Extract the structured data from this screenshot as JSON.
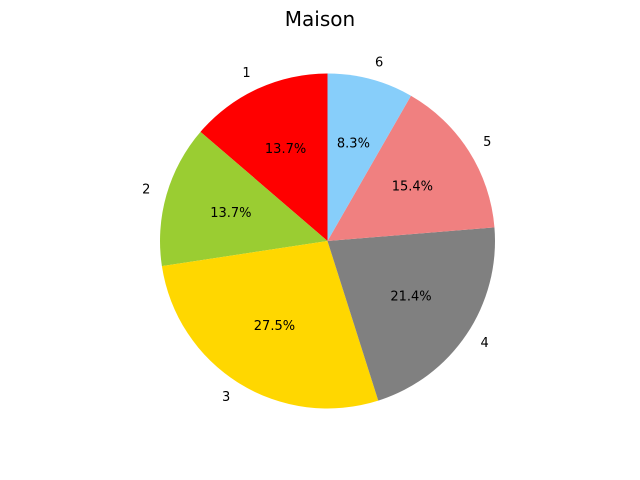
{
  "chart_data": {
    "type": "pie",
    "title": "Maison",
    "start_angle_deg": 90,
    "direction": "counterclockwise",
    "slices": [
      {
        "label": "1",
        "value": 13.7,
        "pct_label": "13.7%",
        "color": "#ff0000"
      },
      {
        "label": "2",
        "value": 13.7,
        "pct_label": "13.7%",
        "color": "#9acd32"
      },
      {
        "label": "3",
        "value": 27.5,
        "pct_label": "27.5%",
        "color": "#ffd700"
      },
      {
        "label": "4",
        "value": 21.4,
        "pct_label": "21.4%",
        "color": "#808080"
      },
      {
        "label": "5",
        "value": 15.4,
        "pct_label": "15.4%",
        "color": "#f08080"
      },
      {
        "label": "6",
        "value": 8.3,
        "pct_label": "8.3%",
        "color": "#87cefa"
      }
    ]
  }
}
